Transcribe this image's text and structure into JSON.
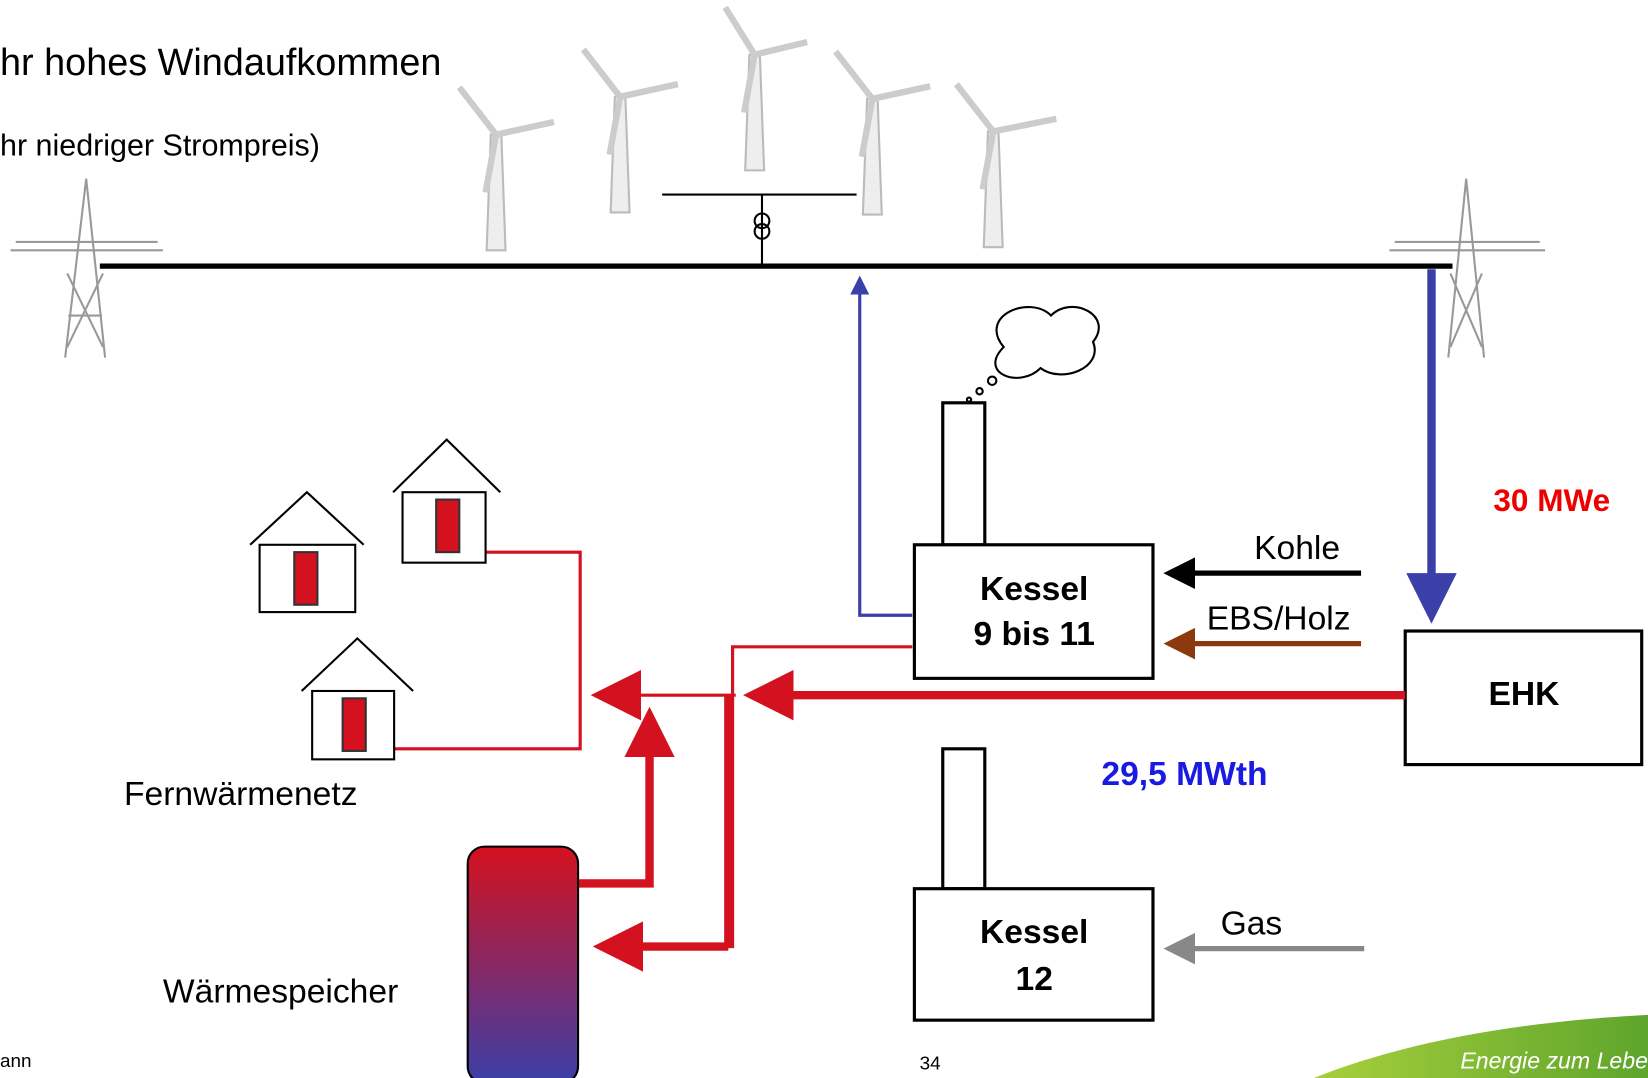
{
  "header": {
    "line1": "hr hohes Windaufkommen",
    "line2": "hr niedriger Strompreis)"
  },
  "nodes": [
    {
      "label_lines": [
        "Kessel",
        "9 bis 11"
      ]
    },
    {
      "label": "EHK"
    },
    {
      "label_lines": [
        "Kessel",
        "12"
      ]
    }
  ],
  "inputs": [
    "Kohle",
    "EBS/Holz",
    "Gas"
  ],
  "annotations": {
    "electric": "30 MWe",
    "thermal": "29,5 MWth"
  },
  "labels": {
    "network": "Fernwärmenetz",
    "storage": "Wärmespeicher"
  },
  "footer": {
    "left": "ann",
    "page": "34",
    "slogan": "Energie zum Lebe"
  }
}
